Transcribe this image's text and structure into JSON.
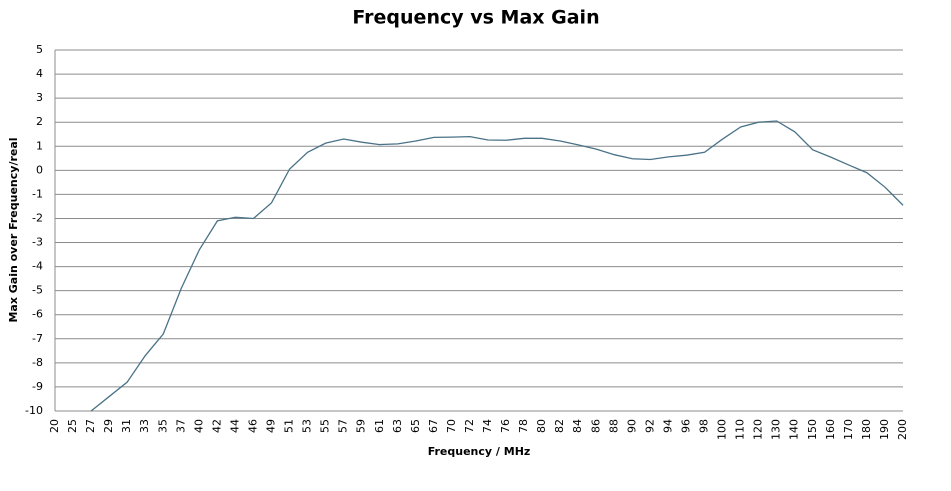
{
  "chart_data": {
    "type": "line",
    "title": "Frequency vs Max Gain",
    "x_label": "Frequency / MHz",
    "y_label": "Max Gain over Frequency/real",
    "categories": [
      "20",
      "25",
      "27",
      "29",
      "31",
      "33",
      "35",
      "37",
      "40",
      "42",
      "44",
      "46",
      "49",
      "51",
      "53",
      "55",
      "57",
      "59",
      "61",
      "63",
      "65",
      "67",
      "70",
      "72",
      "74",
      "76",
      "78",
      "80",
      "82",
      "84",
      "86",
      "88",
      "90",
      "92",
      "94",
      "96",
      "98",
      "100",
      "110",
      "120",
      "130",
      "140",
      "150",
      "160",
      "170",
      "180",
      "190",
      "200"
    ],
    "series": [
      {
        "name": "Max Gain",
        "color": "#4a7287",
        "values": [
          null,
          null,
          -10,
          -9.4,
          -8.8,
          -7.7,
          -6.8,
          -4.9,
          -3.3,
          -2.1,
          -1.95,
          -2.0,
          -1.35,
          0.05,
          0.75,
          1.13,
          1.3,
          1.17,
          1.07,
          1.1,
          1.22,
          1.37,
          1.38,
          1.4,
          1.26,
          1.25,
          1.33,
          1.33,
          1.22,
          1.06,
          0.88,
          0.65,
          0.48,
          0.45,
          0.56,
          0.63,
          0.75,
          1.3,
          1.8,
          2.0,
          2.05,
          1.6,
          0.85,
          0.55,
          0.22,
          -0.1,
          -0.7,
          -1.45
        ]
      }
    ],
    "ylim": [
      -10,
      5
    ],
    "yticks": [
      -10,
      -9,
      -8,
      -7,
      -6,
      -5,
      -4,
      -3,
      -2,
      -1,
      0,
      1,
      2,
      3,
      4,
      5
    ],
    "grid": true
  }
}
